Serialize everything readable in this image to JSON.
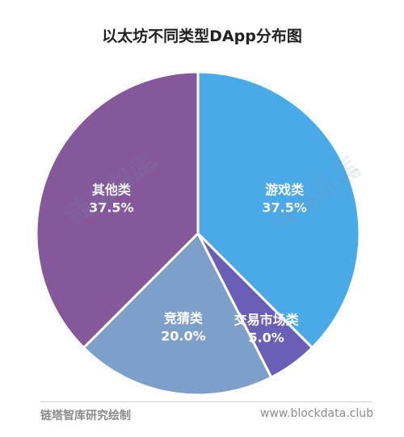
{
  "title": "以太坊不同类型DApp分布图",
  "chart_data": {
    "type": "pie",
    "title": "以太坊不同类型DApp分布图",
    "slices": [
      {
        "label": "游戏类",
        "value": 37.5,
        "value_label": "37.5%",
        "color": "#4aaae8"
      },
      {
        "label": "交易市场类",
        "value": 5.0,
        "value_label": "5.0%",
        "color": "#6b5eb6"
      },
      {
        "label": "竞猜类",
        "value": 20.0,
        "value_label": "20.0%",
        "color": "#7da0cb"
      },
      {
        "label": "其他类",
        "value": 37.5,
        "value_label": "37.5%",
        "color": "#85589b"
      }
    ],
    "start_angle": "12 o'clock",
    "direction": "clockwise"
  },
  "footer": {
    "source": "链塔智库研究绘制",
    "url": "www.blockdata.club"
  },
  "watermark": {
    "cn": "链塔智库",
    "en": "BlockData"
  }
}
